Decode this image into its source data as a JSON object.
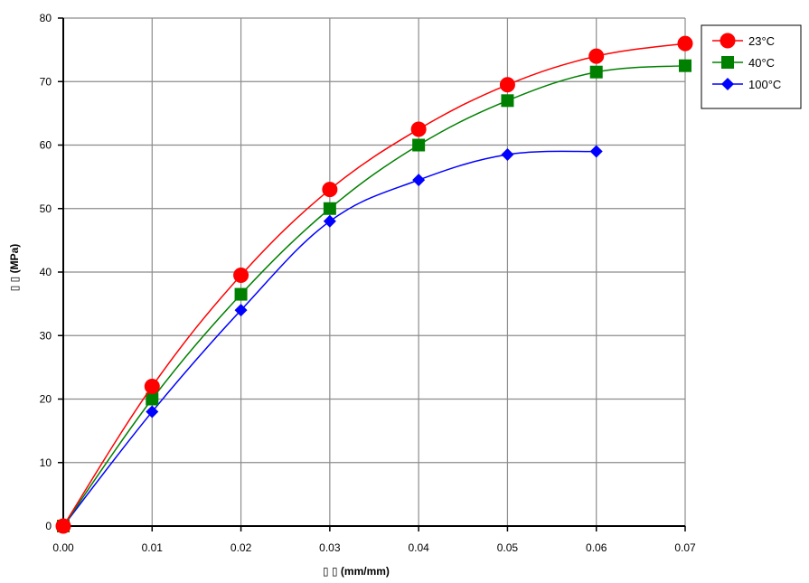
{
  "chart_data": {
    "type": "line",
    "title": "",
    "xlabel": "▯ ▯ (mm/mm)",
    "ylabel": "▯ ▯ (MPa)",
    "xlim": [
      0,
      0.07
    ],
    "ylim": [
      0,
      80
    ],
    "x_ticks": [
      "0.00",
      "0.01",
      "0.02",
      "0.03",
      "0.04",
      "0.05",
      "0.06",
      "0.07"
    ],
    "y_ticks": [
      "0",
      "10",
      "20",
      "30",
      "40",
      "50",
      "60",
      "70",
      "80"
    ],
    "grid": true,
    "legend_position": "top-right",
    "series": [
      {
        "name": "23°C",
        "color": "#ff0000",
        "marker": "circle",
        "x": [
          0.0,
          0.01,
          0.02,
          0.03,
          0.04,
          0.05,
          0.06,
          0.07
        ],
        "y": [
          0,
          22,
          39.5,
          53,
          62.5,
          69.5,
          74,
          76
        ]
      },
      {
        "name": "40°C",
        "color": "#008000",
        "marker": "square",
        "x": [
          0.0,
          0.01,
          0.02,
          0.03,
          0.04,
          0.05,
          0.06,
          0.07
        ],
        "y": [
          0,
          20,
          36.5,
          50,
          60,
          67,
          71.5,
          72.5
        ]
      },
      {
        "name": "100°C",
        "color": "#0000ff",
        "marker": "diamond",
        "x": [
          0.0,
          0.01,
          0.02,
          0.03,
          0.04,
          0.05,
          0.06
        ],
        "y": [
          0,
          18,
          34,
          48,
          54.5,
          58.5,
          59
        ]
      }
    ]
  }
}
